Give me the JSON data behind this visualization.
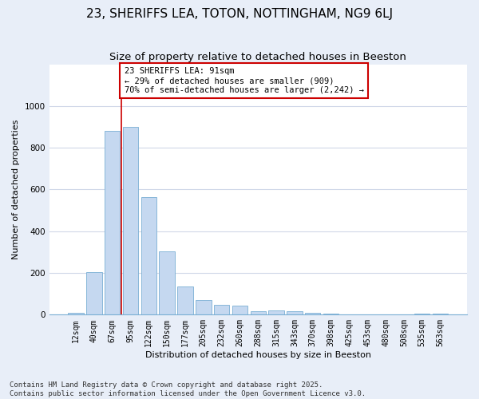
{
  "title": "23, SHERIFFS LEA, TOTON, NOTTINGHAM, NG9 6LJ",
  "subtitle": "Size of property relative to detached houses in Beeston",
  "xlabel": "Distribution of detached houses by size in Beeston",
  "ylabel": "Number of detached properties",
  "categories": [
    "12sqm",
    "40sqm",
    "67sqm",
    "95sqm",
    "122sqm",
    "150sqm",
    "177sqm",
    "205sqm",
    "232sqm",
    "260sqm",
    "288sqm",
    "315sqm",
    "343sqm",
    "370sqm",
    "398sqm",
    "425sqm",
    "453sqm",
    "480sqm",
    "508sqm",
    "535sqm",
    "563sqm"
  ],
  "values": [
    10,
    205,
    880,
    900,
    565,
    305,
    135,
    72,
    48,
    42,
    18,
    20,
    18,
    10,
    5,
    2,
    2,
    1,
    0,
    5,
    5
  ],
  "bar_color": "#c5d8f0",
  "bar_edge_color": "#7aafd4",
  "property_line_index": 2.5,
  "annotation_text": "23 SHERIFFS LEA: 91sqm\n← 29% of detached houses are smaller (909)\n70% of semi-detached houses are larger (2,242) →",
  "annotation_box_color": "#cc0000",
  "ylim": [
    0,
    1200
  ],
  "yticks": [
    0,
    200,
    400,
    600,
    800,
    1000
  ],
  "fig_bg": "#e8eef8",
  "plot_bg": "#ffffff",
  "grid_color": "#d0d8e8",
  "footer": "Contains HM Land Registry data © Crown copyright and database right 2025.\nContains public sector information licensed under the Open Government Licence v3.0.",
  "title_fontsize": 11,
  "label_fontsize": 8,
  "tick_fontsize": 7,
  "footer_fontsize": 6.5
}
